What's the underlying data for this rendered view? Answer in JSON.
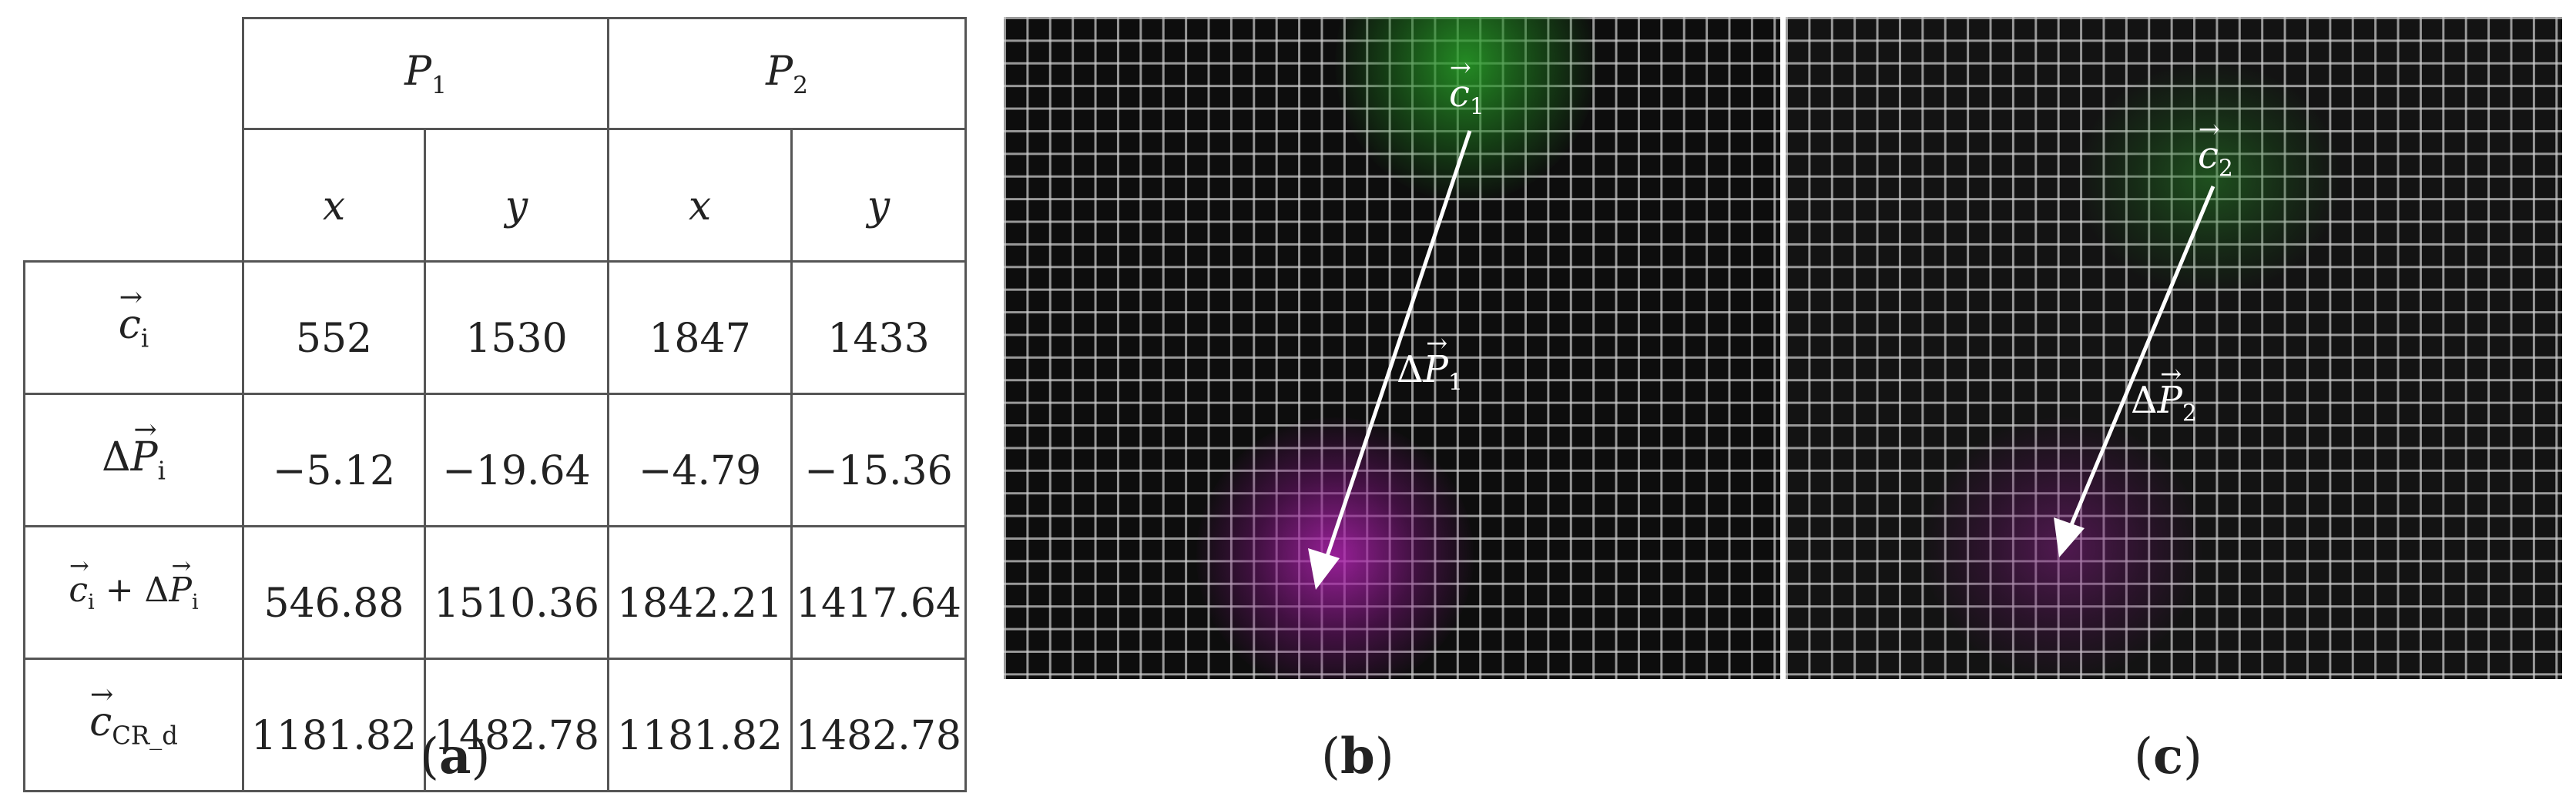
{
  "table": {
    "groups": [
      "P",
      "P"
    ],
    "group_subs": [
      "1",
      "2"
    ],
    "cols": [
      "x",
      "y",
      "x",
      "y"
    ],
    "rows": [
      {
        "label_main": "c",
        "label_sub": "i",
        "values": [
          "552",
          "1530",
          "1847",
          "1433"
        ]
      },
      {
        "label_prefix": "Δ",
        "label_main": "P",
        "label_sub": "i",
        "values": [
          "−5.12",
          "−19.64",
          "−4.79",
          "−15.36"
        ]
      },
      {
        "label_main": "c",
        "label_sub": "i",
        "label_op": "+ Δ",
        "label_main2": "P",
        "label_sub2": "i",
        "values": [
          "546.88",
          "1510.36",
          "1842.21",
          "1417.64"
        ]
      },
      {
        "label_main": "c",
        "label_sub": "CR_d",
        "values": [
          "1181.82",
          "1482.78",
          "1181.82",
          "1482.78"
        ]
      }
    ]
  },
  "panel_b": {
    "c_main": "c",
    "c_sub": "1",
    "p_prefix": "Δ",
    "p_main": "P",
    "p_sub": "1"
  },
  "panel_c": {
    "c_main": "c",
    "c_sub": "2",
    "p_prefix": "Δ",
    "p_main": "P",
    "p_sub": "2"
  },
  "captions": {
    "open": "(",
    "close": ")",
    "a": "a",
    "b": "b",
    "c": "c"
  },
  "colors": {
    "green_blob": "#2e9a2e",
    "magenta_blob": "#a020a0",
    "grid": "#cdcdcd",
    "arrow": "#ffffff"
  }
}
